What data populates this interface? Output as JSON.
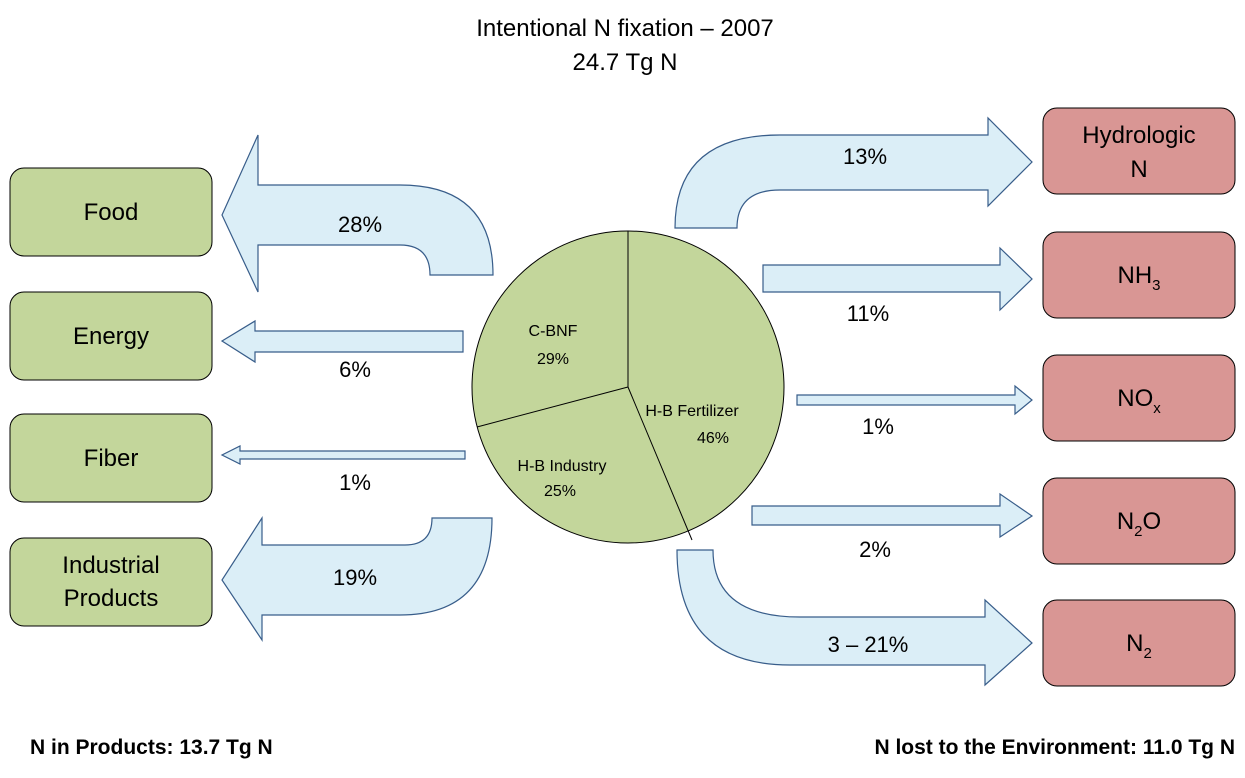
{
  "title": {
    "line1": "Intentional N fixation – 2007",
    "line2": "24.7 Tg N"
  },
  "pie": [
    {
      "name": "C-BNF",
      "share": "29%"
    },
    {
      "name": "H-B Fertilizer",
      "share": "46%"
    },
    {
      "name": "H-B Industry",
      "share": "25%"
    }
  ],
  "products": [
    {
      "lines": [
        "Food"
      ],
      "flow": "28%"
    },
    {
      "lines": [
        "Energy"
      ],
      "flow": "6%"
    },
    {
      "lines": [
        "Fiber"
      ],
      "flow": "1%"
    },
    {
      "lines": [
        "Industrial",
        "Products"
      ],
      "flow": "19%"
    }
  ],
  "losses": [
    {
      "lines": [
        "Hydrologic",
        "N"
      ],
      "flow": "13%"
    },
    {
      "text": "NH",
      "sub": "3",
      "flow": "11%"
    },
    {
      "text": "NO",
      "sub": "x",
      "flow": "1%"
    },
    {
      "text": "N",
      "sub": "2",
      "after": "O",
      "flow": "2%"
    },
    {
      "text": "N",
      "sub": "2",
      "flow": "3 – 21%"
    }
  ],
  "footer": {
    "left": "N in Products: 13.7 Tg N",
    "right": "N lost to the Environment: 11.0 Tg N"
  }
}
